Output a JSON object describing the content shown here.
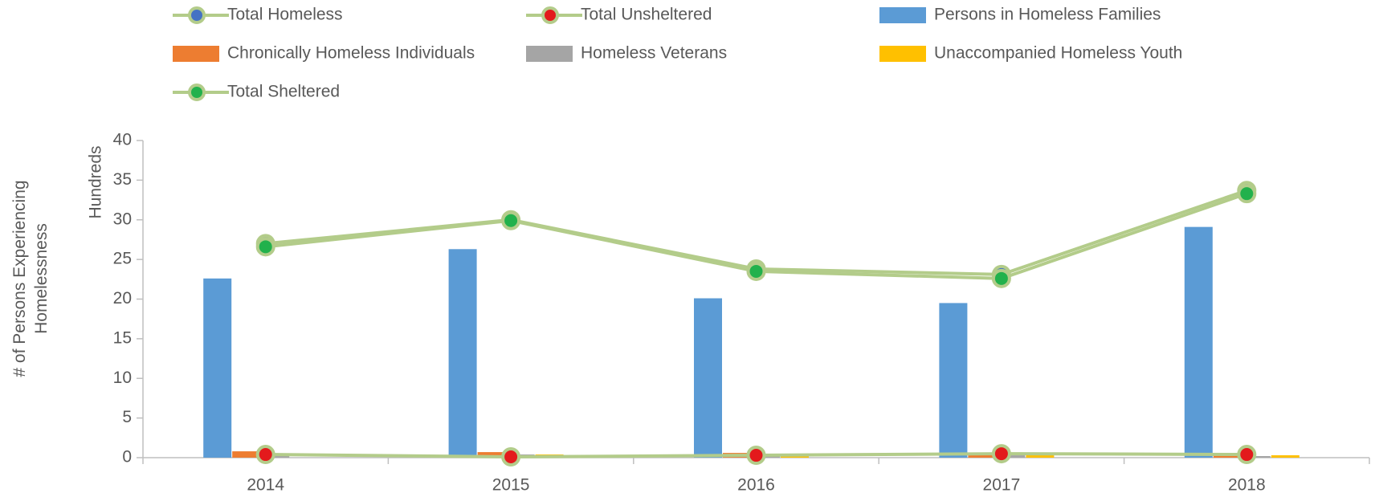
{
  "chart_data": {
    "type": "combo",
    "categories": [
      "2014",
      "2015",
      "2016",
      "2017",
      "2018"
    ],
    "ylabel": "# of Persons Experiencing Homelessness",
    "y_units_label": "Hundreds",
    "ylim": [
      0,
      40
    ],
    "yticks": [
      0,
      5,
      10,
      15,
      20,
      25,
      30,
      35,
      40
    ],
    "series": [
      {
        "name": "Total Homeless",
        "type": "line",
        "color": "#4472c4",
        "values": [
          27.0,
          30.0,
          23.8,
          23.1,
          33.7
        ]
      },
      {
        "name": "Total Unsheltered",
        "type": "line",
        "color": "#e31a1c",
        "values": [
          0.4,
          0.1,
          0.3,
          0.5,
          0.4
        ]
      },
      {
        "name": "Persons in Homeless Families",
        "type": "bar",
        "color": "#5b9bd5",
        "values": [
          22.6,
          26.3,
          20.1,
          19.5,
          29.1
        ]
      },
      {
        "name": "Chronically Homeless Individuals",
        "type": "bar",
        "color": "#ed7d31",
        "values": [
          0.8,
          0.7,
          0.6,
          0.6,
          0.6
        ]
      },
      {
        "name": "Homeless Veterans",
        "type": "bar",
        "color": "#a5a5a5",
        "values": [
          0.4,
          0.4,
          0.3,
          0.3,
          0.2
        ]
      },
      {
        "name": "Unaccompanied Homeless Youth",
        "type": "bar",
        "color": "#ffc000",
        "values": [
          0,
          0.4,
          0.4,
          0.4,
          0.3
        ]
      },
      {
        "name": "Total Sheltered",
        "type": "line",
        "color": "#22b14c",
        "values": [
          26.6,
          29.9,
          23.5,
          22.6,
          33.3
        ]
      }
    ]
  }
}
